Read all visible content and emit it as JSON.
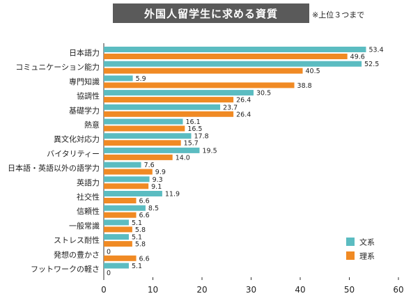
{
  "header": {
    "title": "外国人留学生に求める資質",
    "note": "※上位３つまで"
  },
  "colors": {
    "series_1": "#5bbcc1",
    "series_2": "#f08a24",
    "title_bg": "#5a5a5a"
  },
  "chart_data": {
    "type": "bar",
    "orientation": "horizontal",
    "title": "外国人留学生に求める資質",
    "xlim": [
      0,
      60
    ],
    "x_ticks": [
      0,
      10,
      20,
      30,
      40,
      50,
      60
    ],
    "grid": false,
    "legend_position": "bottom-right",
    "categories": [
      "日本語力",
      "コミュニケーション能力",
      "専門知識",
      "協調性",
      "基礎学力",
      "熱意",
      "異文化対応力",
      "バイタリティー",
      "日本語・英語以外の語学力",
      "英語力",
      "社交性",
      "信頼性",
      "一般常識",
      "ストレス耐性",
      "発想の豊かさ",
      "フットワークの軽さ"
    ],
    "series": [
      {
        "name": "文系",
        "values": [
          53.4,
          52.5,
          5.9,
          30.5,
          23.7,
          16.1,
          17.8,
          19.5,
          7.6,
          9.3,
          11.9,
          8.5,
          5.1,
          5.1,
          0,
          5.1
        ]
      },
      {
        "name": "理系",
        "values": [
          49.6,
          40.5,
          38.8,
          26.4,
          26.4,
          16.5,
          15.7,
          14.0,
          9.9,
          9.1,
          6.6,
          6.6,
          5.8,
          5.8,
          6.6,
          0
        ]
      }
    ],
    "value_labels": [
      [
        "53.4",
        "52.5",
        "5.9",
        "30.5",
        "23.7",
        "16.1",
        "17.8",
        "19.5",
        "7.6",
        "9.3",
        "11.9",
        "8.5",
        "5.1",
        "5.1",
        "0",
        "5.1"
      ],
      [
        "49.6",
        "40.5",
        "38.8",
        "26.4",
        "26.4",
        "16.5",
        "15.7",
        "14.0",
        "9.9",
        "9.1",
        "6.6",
        "6.6",
        "5.8",
        "5.8",
        "6.6",
        "0"
      ]
    ]
  }
}
